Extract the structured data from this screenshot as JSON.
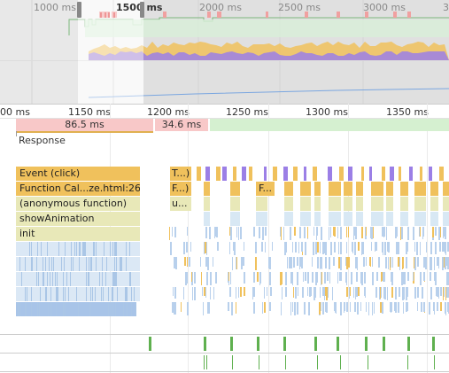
{
  "overview": {
    "ticks": [
      "1000 ms",
      "1500 ms",
      "2000 ms",
      "2500 ms",
      "3000 ms",
      "3"
    ],
    "colors": {
      "fps": "#7db87d",
      "scripting": "#f0c15c",
      "rendering": "#9b7fe6",
      "painting": "#7aa6e0",
      "selection_shade": "#d0d0d0"
    }
  },
  "ruler": {
    "ticks": [
      "00 ms",
      "1150 ms",
      "1200 ms",
      "1250 ms",
      "1300 ms",
      "1350 ms"
    ]
  },
  "interactions": {
    "segments": [
      "86.5 ms",
      "34.6 ms"
    ],
    "response_label": "Response",
    "colors": {
      "long": "#f8c8c8",
      "short": "#d5f0d0",
      "underline": "#e0b050"
    }
  },
  "flame": {
    "rows": [
      {
        "label": "Event (click)",
        "color": "#f0c15c"
      },
      {
        "label": "Function Cal...ze.html:26)",
        "color": "#f0c15c"
      },
      {
        "label": "(anonymous function)",
        "color": "#e8e8b8"
      },
      {
        "label": "showAnimation",
        "color": "#e8e8b8"
      },
      {
        "label": "init",
        "color": "#e8e8b8"
      }
    ],
    "second_call_labels": [
      "T...)",
      "F...)",
      "u..."
    ],
    "third_call_label": "F...",
    "colors": {
      "event_stripe": "#9b7fe6",
      "deep_blue": "#c8dcf0",
      "deep_blue_dark": "#a8c4e8"
    }
  },
  "bottom": {
    "colors": {
      "frame_green": "#5fb04f"
    }
  }
}
